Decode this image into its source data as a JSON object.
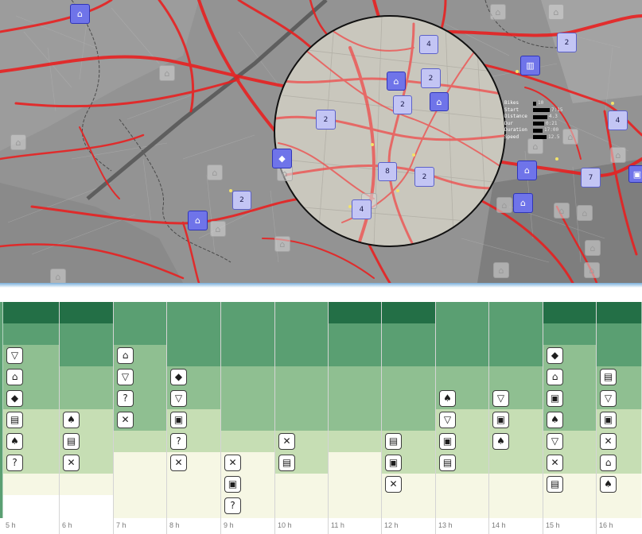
{
  "map": {
    "lens_markers": [
      {
        "icon": "",
        "count": "4",
        "style": "light"
      },
      {
        "icon": "home-icon",
        "count": "",
        "style": "blue"
      },
      {
        "icon": "",
        "count": "2",
        "style": "light"
      },
      {
        "icon": "",
        "count": "2",
        "style": "light"
      },
      {
        "icon": "home-icon",
        "count": "",
        "style": "blue"
      },
      {
        "icon": "",
        "count": "2",
        "style": "light"
      },
      {
        "icon": "shopping-tag-icon",
        "count": "",
        "style": "blue"
      },
      {
        "icon": "",
        "count": "8",
        "style": "light"
      },
      {
        "icon": "",
        "count": "2",
        "style": "light"
      },
      {
        "icon": "",
        "count": "4",
        "style": "light"
      }
    ],
    "outer_markers": [
      {
        "icon": "home-icon",
        "count": "",
        "style": "blue"
      },
      {
        "icon": "",
        "count": "2",
        "style": "light"
      },
      {
        "icon": "building-icon",
        "count": "",
        "style": "blue"
      },
      {
        "icon": "",
        "count": "4",
        "style": "light"
      },
      {
        "icon": "home-icon",
        "count": "",
        "style": "blue"
      },
      {
        "icon": "",
        "count": "7",
        "style": "light"
      },
      {
        "icon": "briefcase-icon",
        "count": "",
        "style": "blue"
      },
      {
        "icon": "home-icon",
        "count": "",
        "style": "blue"
      },
      {
        "icon": "",
        "count": "2",
        "style": "light"
      },
      {
        "icon": "home-icon",
        "count": "",
        "style": "blue"
      }
    ],
    "legend": {
      "rows": [
        {
          "label": "Bikes",
          "fill": 0.12,
          "value": "10"
        },
        {
          "label": "Start",
          "fill": 0.7,
          "value": "7:15"
        },
        {
          "label": "Distance",
          "fill": 0.6,
          "value": "4.3"
        },
        {
          "label": "Dur",
          "fill": 0.45,
          "value": "0:21"
        },
        {
          "label": "Duration",
          "fill": 0.4,
          "value": "17:00"
        },
        {
          "label": "Speed",
          "fill": 0.55,
          "value": "12.5"
        }
      ]
    }
  },
  "timeline": {
    "hours": [
      "5 h",
      "6 h",
      "7 h",
      "8 h",
      "9 h",
      "10 h",
      "11 h",
      "12 h",
      "13 h",
      "14 h",
      "15 h",
      "16 h"
    ],
    "colors": {
      "top": "#236f46",
      "row2": "#5a9f72",
      "mid": "#8fbf91",
      "pale": "#c6deb4",
      "cream": "#f6f7e4"
    },
    "columns": [
      {
        "icons": [
          "cocktail-icon",
          "graduation-cap-icon",
          "shopping-tag-icon",
          "fuel-pump-icon",
          "tree-icon",
          "question-icon"
        ]
      },
      {
        "icons": [
          "tree-icon",
          "fuel-pump-icon",
          "cutlery-icon"
        ]
      },
      {
        "icons": [
          "graduation-cap-icon",
          "cocktail-icon",
          "question-icon",
          "cutlery-icon"
        ]
      },
      {
        "icons": [
          "shopping-tag-icon",
          "cocktail-icon",
          "briefcase-icon",
          "question-icon",
          "cutlery-icon"
        ]
      },
      {
        "icons": [
          "cutlery-icon",
          "briefcase-icon",
          "question-icon"
        ]
      },
      {
        "icons": [
          "cutlery-icon",
          "fuel-pump-icon"
        ]
      },
      {
        "icons": []
      },
      {
        "icons": [
          "fuel-pump-icon",
          "briefcase-icon",
          "cutlery-icon"
        ]
      },
      {
        "icons": [
          "tree-icon",
          "cocktail-icon",
          "briefcase-icon",
          "fuel-pump-icon"
        ]
      },
      {
        "icons": [
          "cocktail-icon",
          "briefcase-icon",
          "tree-icon"
        ]
      },
      {
        "icons": [
          "shopping-tag-icon",
          "graduation-cap-icon",
          "briefcase-icon",
          "tree-icon",
          "cocktail-icon",
          "cutlery-icon",
          "fuel-pump-icon"
        ]
      },
      {
        "icons": [
          "fuel-pump-icon",
          "cocktail-icon",
          "briefcase-icon",
          "cutlery-icon",
          "graduation-cap-icon",
          "tree-icon"
        ]
      }
    ]
  }
}
